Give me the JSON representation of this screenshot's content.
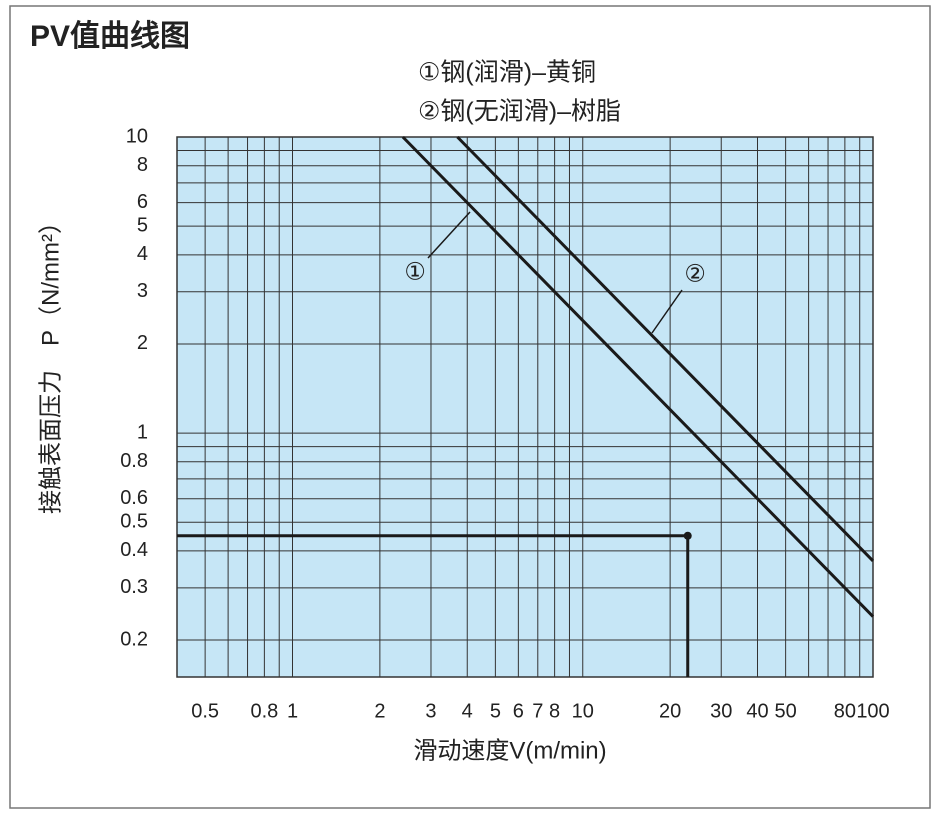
{
  "chart_data": {
    "type": "line",
    "title": "PV值曲线图",
    "legend": [
      "①钢(润滑)–黄铜",
      "②钢(无润滑)–树脂"
    ],
    "xlabel": "滑动速度V(m/min)",
    "ylabel": "接触表面压力　P（N/mm²）",
    "log_x": true,
    "log_y": true,
    "grid": true,
    "background": "#c6e6f6",
    "xlim": [
      0.4,
      100
    ],
    "ylim": [
      0.15,
      10
    ],
    "xticks": [
      0.5,
      0.8,
      1,
      2,
      3,
      4,
      5,
      6,
      7,
      8,
      10,
      20,
      30,
      40,
      50,
      80,
      100
    ],
    "yticks": [
      0.2,
      0.3,
      0.4,
      0.5,
      0.6,
      0.8,
      1,
      2,
      3,
      4,
      5,
      6,
      8,
      10
    ],
    "x_grid": [
      0.6,
      0.7,
      0.9,
      9,
      60,
      70,
      90
    ],
    "y_grid": [
      0.7,
      0.9,
      7,
      9
    ],
    "series": [
      {
        "name": "①",
        "color": "#1a1a1a",
        "x": [
          2.4,
          100
        ],
        "values": [
          10,
          0.24
        ]
      },
      {
        "name": "②",
        "color": "#1a1a1a",
        "x": [
          3.7,
          100
        ],
        "values": [
          10,
          0.37
        ]
      }
    ],
    "point": {
      "x": 23,
      "y": 0.45,
      "color": "#1a1a1a"
    }
  }
}
